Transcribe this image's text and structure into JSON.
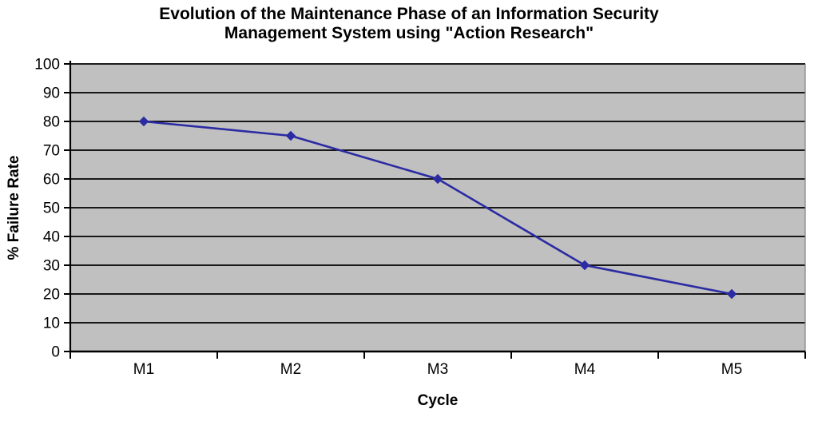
{
  "chart_data": {
    "type": "line",
    "title": "Evolution of the Maintenance Phase of an Information Security Management System using \"Action Research\"",
    "title_lines": [
      "Evolution of the Maintenance Phase of an Information Security",
      "Management System using \"Action Research\""
    ],
    "categories": [
      "M1",
      "M2",
      "M3",
      "M4",
      "M5"
    ],
    "series": [
      {
        "name": "% Failure Rate",
        "values": [
          80,
          75,
          60,
          30,
          20
        ]
      }
    ],
    "xlabel": "Cycle",
    "ylabel": "% Failure Rate",
    "ylim": [
      0,
      100
    ],
    "ytick_step": 10,
    "grid": true,
    "legend": false,
    "marker": "diamond",
    "colors": {
      "series": "#2B2BA3",
      "plot_bg": "#C0C0C0",
      "grid": "#000000",
      "axis": "#000000",
      "text": "#000000",
      "background": "#FFFFFF"
    }
  }
}
